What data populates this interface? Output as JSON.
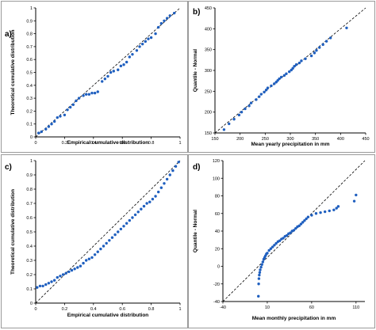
{
  "colors": {
    "points": "#1f5fbf",
    "reference": "#000000"
  },
  "chart_data": [
    {
      "panel": "a)",
      "type": "scatter",
      "xlabel": "Empirical cumulative distribution",
      "ylabel": "Theoretical cumulative distribution",
      "xlim": [
        0,
        1
      ],
      "ylim": [
        0,
        1
      ],
      "xticks": [
        0,
        0.2,
        0.4,
        0.6,
        0.8,
        1
      ],
      "yticks": [
        0,
        0.1,
        0.2,
        0.3,
        0.4,
        0.5,
        0.6,
        0.7,
        0.8,
        0.9,
        1
      ],
      "reference_line": true,
      "x": [
        0.02,
        0.04,
        0.07,
        0.09,
        0.11,
        0.13,
        0.15,
        0.17,
        0.2,
        0.22,
        0.24,
        0.26,
        0.28,
        0.3,
        0.33,
        0.35,
        0.37,
        0.39,
        0.41,
        0.43,
        0.46,
        0.48,
        0.5,
        0.52,
        0.54,
        0.57,
        0.59,
        0.61,
        0.63,
        0.65,
        0.67,
        0.7,
        0.72,
        0.74,
        0.76,
        0.78,
        0.8,
        0.83,
        0.85,
        0.87,
        0.89,
        0.91,
        0.93,
        0.96
      ],
      "y": [
        0.03,
        0.04,
        0.06,
        0.08,
        0.1,
        0.12,
        0.15,
        0.16,
        0.17,
        0.21,
        0.23,
        0.25,
        0.28,
        0.3,
        0.32,
        0.33,
        0.33,
        0.34,
        0.34,
        0.35,
        0.43,
        0.45,
        0.47,
        0.5,
        0.51,
        0.52,
        0.55,
        0.56,
        0.58,
        0.62,
        0.64,
        0.67,
        0.7,
        0.72,
        0.74,
        0.76,
        0.77,
        0.8,
        0.85,
        0.88,
        0.9,
        0.92,
        0.94,
        0.96
      ]
    },
    {
      "panel": "b)",
      "type": "scatter",
      "xlabel": "Mean yearly precipitation in mm",
      "ylabel": "Quantile - Normal",
      "xlim": [
        150,
        450
      ],
      "ylim": [
        150,
        450
      ],
      "xticks": [
        150,
        200,
        250,
        300,
        350,
        400,
        450
      ],
      "yticks": [
        150,
        200,
        250,
        300,
        350,
        400,
        450
      ],
      "reference_line": true,
      "x": [
        168,
        178,
        188,
        198,
        203,
        210,
        218,
        222,
        232,
        238,
        242,
        248,
        252,
        255,
        262,
        268,
        272,
        275,
        278,
        282,
        288,
        292,
        298,
        302,
        305,
        308,
        312,
        318,
        322,
        330,
        342,
        348,
        352,
        358,
        365,
        372,
        380,
        412
      ],
      "y": [
        158,
        172,
        183,
        193,
        200,
        208,
        215,
        222,
        230,
        237,
        243,
        248,
        253,
        258,
        263,
        268,
        272,
        276,
        280,
        284,
        288,
        292,
        297,
        301,
        305,
        310,
        314,
        318,
        323,
        328,
        335,
        342,
        348,
        355,
        362,
        370,
        378,
        402
      ]
    },
    {
      "panel": "c)",
      "type": "scatter",
      "xlabel": "Empirical cumulative distribution",
      "ylabel": "Theoretical cumulative distribution",
      "xlim": [
        0,
        1
      ],
      "ylim": [
        0,
        1
      ],
      "xticks": [
        0,
        0.2,
        0.4,
        0.6,
        0.8,
        1
      ],
      "yticks": [
        0,
        0.1,
        0.2,
        0.3,
        0.4,
        0.5,
        0.6,
        0.7,
        0.8,
        0.9,
        1
      ],
      "reference_line": true,
      "x": [
        0.01,
        0.03,
        0.05,
        0.07,
        0.09,
        0.11,
        0.13,
        0.15,
        0.17,
        0.19,
        0.21,
        0.23,
        0.25,
        0.27,
        0.29,
        0.31,
        0.33,
        0.35,
        0.37,
        0.39,
        0.41,
        0.43,
        0.45,
        0.47,
        0.49,
        0.51,
        0.53,
        0.55,
        0.57,
        0.59,
        0.61,
        0.63,
        0.65,
        0.67,
        0.69,
        0.71,
        0.73,
        0.75,
        0.77,
        0.79,
        0.81,
        0.83,
        0.85,
        0.87,
        0.89,
        0.91,
        0.93,
        0.95,
        0.97,
        0.99
      ],
      "y": [
        0.11,
        0.12,
        0.12,
        0.13,
        0.14,
        0.15,
        0.16,
        0.18,
        0.19,
        0.2,
        0.21,
        0.22,
        0.23,
        0.24,
        0.25,
        0.26,
        0.28,
        0.3,
        0.31,
        0.32,
        0.34,
        0.36,
        0.38,
        0.4,
        0.42,
        0.44,
        0.46,
        0.48,
        0.5,
        0.52,
        0.54,
        0.56,
        0.58,
        0.6,
        0.62,
        0.64,
        0.66,
        0.68,
        0.7,
        0.71,
        0.73,
        0.75,
        0.78,
        0.81,
        0.84,
        0.87,
        0.9,
        0.93,
        0.96,
        0.99
      ]
    },
    {
      "panel": "d)",
      "type": "scatter",
      "xlabel": "Mean monthly precipitation in mm",
      "ylabel": "Quantile - Normal",
      "xlim": [
        -40,
        120
      ],
      "ylim": [
        -40,
        120
      ],
      "xticks": [
        -40,
        10,
        60,
        110
      ],
      "yticks": [
        -40,
        -20,
        0,
        20,
        40,
        60,
        80,
        100,
        120
      ],
      "reference_line": true,
      "x": [
        0,
        0.3,
        0.6,
        1,
        1.5,
        2,
        3,
        4,
        5,
        6,
        7,
        8,
        9,
        10,
        12,
        14,
        16,
        18,
        20,
        22,
        24,
        26,
        28,
        30,
        32,
        34,
        36,
        38,
        40,
        42,
        44,
        46,
        48,
        50,
        52,
        54,
        56,
        60,
        65,
        70,
        75,
        80,
        85,
        88,
        90,
        108,
        110
      ],
      "y": [
        -34,
        -20,
        -14,
        -10,
        -7,
        -4,
        -1,
        2,
        5,
        8,
        10,
        12,
        14,
        15,
        18,
        20,
        22,
        24,
        26,
        28,
        29,
        31,
        32,
        34,
        35,
        37,
        38,
        40,
        41,
        43,
        45,
        46,
        48,
        50,
        52,
        54,
        56,
        58,
        60,
        61,
        62,
        63,
        64,
        66,
        68,
        74,
        81
      ]
    }
  ]
}
